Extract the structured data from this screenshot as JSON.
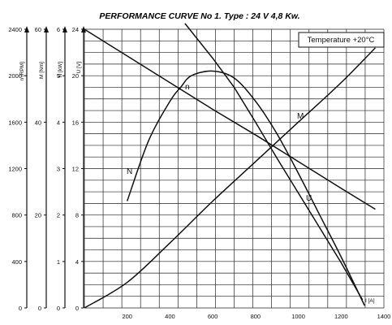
{
  "chart_data": {
    "type": "line",
    "title": "PERFORMANCE CURVE No 1.  Type : 24 V  4,8 Kw.",
    "annotation": "Temperature  +20°C",
    "xlabel": "I [A]",
    "xlim": [
      0,
      1400
    ],
    "x_ticks": [
      "200",
      "400",
      "600",
      "800",
      "1000",
      "1200",
      "1400"
    ],
    "grid": true,
    "y_axes": [
      {
        "label": "n [RPM]",
        "lim": [
          0,
          2400
        ],
        "ticks": [
          "0",
          "400",
          "800",
          "1200",
          "1600",
          "2000",
          "2400"
        ]
      },
      {
        "label": "M [Nm]",
        "lim": [
          0,
          60
        ],
        "ticks": [
          "0",
          "20",
          "40",
          "60"
        ]
      },
      {
        "label": "N [kW]",
        "lim": [
          0,
          6
        ],
        "ticks": [
          "0",
          "1",
          "2",
          "3",
          "4",
          "5",
          "6"
        ]
      },
      {
        "label": "U [V]",
        "lim": [
          0,
          24
        ],
        "ticks": [
          "0",
          "4",
          "8",
          "12",
          "16",
          "20",
          "24"
        ]
      }
    ],
    "series": [
      {
        "name": "n",
        "axis": "n [RPM]",
        "x": [
          470,
          600,
          700,
          800,
          900,
          1000,
          1100,
          1200,
          1300
        ],
        "y": [
          2450,
          2150,
          1900,
          1600,
          1290,
          990,
          690,
          390,
          70
        ]
      },
      {
        "name": "M",
        "axis": "M [Nm]",
        "x": [
          0,
          200,
          400,
          600,
          800,
          1000,
          1200,
          1360
        ],
        "y": [
          0,
          5.5,
          14,
          23,
          31.5,
          40,
          48.5,
          56
        ]
      },
      {
        "name": "N",
        "axis": "N [kW]",
        "x": [
          200,
          300,
          400,
          450,
          500,
          600,
          700,
          800,
          900,
          1000,
          1100,
          1200,
          1310
        ],
        "y": [
          2.3,
          3.6,
          4.45,
          4.75,
          5.0,
          5.1,
          4.95,
          4.45,
          3.75,
          2.9,
          2.0,
          1.1,
          0.05
        ]
      },
      {
        "name": "U",
        "axis": "U [V]",
        "x": [
          0,
          200,
          400,
          600,
          800,
          1000,
          1200,
          1360
        ],
        "y": [
          24,
          21.7,
          19.4,
          17.1,
          14.9,
          12.6,
          10.3,
          8.5
        ]
      }
    ]
  }
}
